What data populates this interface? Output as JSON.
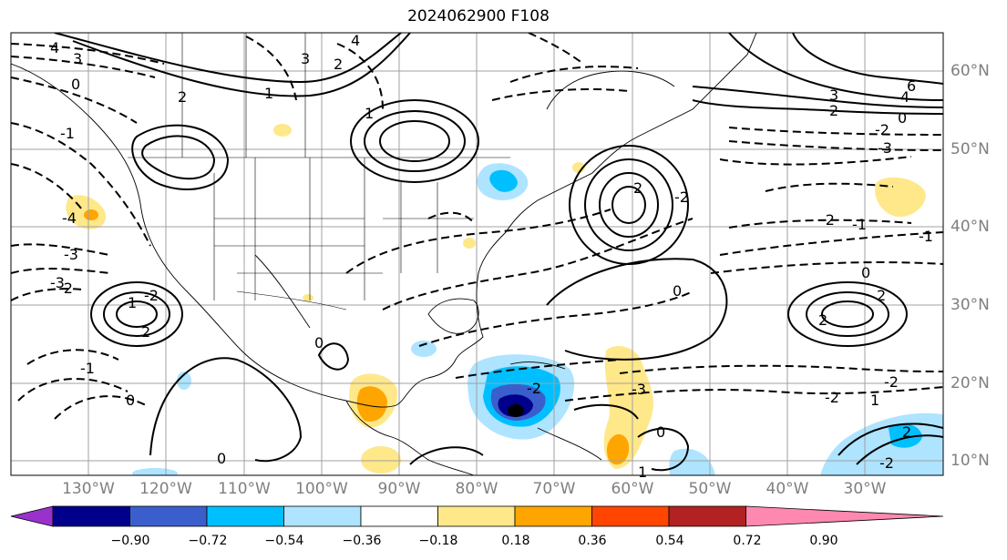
{
  "title": "2024062900 F108",
  "lat_labels": [
    "60°N",
    "50°N",
    "40°N",
    "30°N",
    "20°N",
    "10°N"
  ],
  "lon_labels": [
    "130°W",
    "120°W",
    "110°W",
    "100°W",
    "90°W",
    "80°W",
    "70°W",
    "60°W",
    "50°W",
    "40°W",
    "30°W"
  ],
  "colorbar": {
    "ticks": [
      "−0.90",
      "−0.72",
      "−0.54",
      "−0.36",
      "−0.18",
      "0.18",
      "0.36",
      "0.54",
      "0.72",
      "0.90"
    ],
    "colors": [
      "#9932cc",
      "#00008b",
      "#3a5fcd",
      "#00bfff",
      "#aee4ff",
      "#ffffff",
      "#ffe88a",
      "#ffa500",
      "#ff4500",
      "#b22222",
      "#ff88b0"
    ]
  },
  "contour_labels": [
    "4",
    "3",
    "2",
    "1",
    "0",
    "-1",
    "-2",
    "-3",
    "4",
    "3",
    "2",
    "1",
    "6",
    "4",
    "3",
    "2",
    "0",
    "-2",
    "-3",
    "-1",
    "-2",
    "-4",
    "-3",
    "-2",
    "2",
    "1",
    "0",
    "-1",
    "-2",
    "-3",
    "0",
    "-2",
    "1",
    "2",
    "2",
    "-2",
    "0",
    "-1",
    "-2",
    "2",
    "0",
    "1",
    "2",
    "-2",
    "0",
    "0"
  ]
}
